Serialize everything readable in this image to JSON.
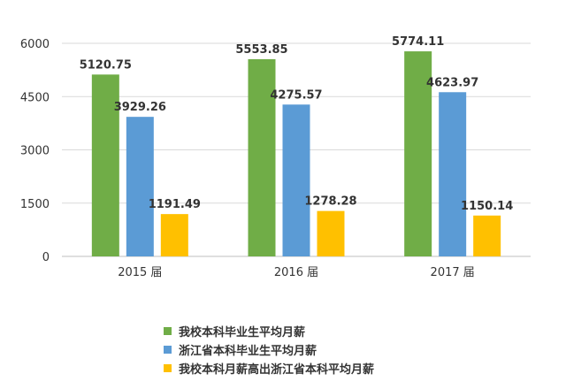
{
  "chart_data": {
    "type": "bar",
    "categories": [
      "2015 届",
      "2016 届",
      "2017 届"
    ],
    "series": [
      {
        "name": "我校本科毕业生平均月薪",
        "values": [
          5120.75,
          5553.85,
          5774.11
        ],
        "color": "#70AD47"
      },
      {
        "name": "浙江省本科毕业生平均月薪",
        "values": [
          3929.26,
          4275.57,
          4623.97
        ],
        "color": "#5B9BD5"
      },
      {
        "name": "我校本科月薪高出浙江省本科平均月薪",
        "values": [
          1191.49,
          1278.28,
          1150.14
        ],
        "color": "#FFC000"
      }
    ],
    "yticks": [
      0,
      1500,
      3000,
      4500,
      6000
    ],
    "ylim": [
      0,
      6000
    ],
    "grid": true,
    "legend_position": "bottom"
  }
}
